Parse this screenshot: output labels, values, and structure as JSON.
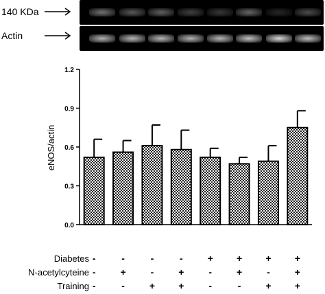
{
  "blot": {
    "top_label": "140 KDa",
    "bottom_label": "Actin",
    "top_band_intensity": [
      0.45,
      0.35,
      0.38,
      0.25,
      0.22,
      0.4,
      0.15,
      0.3
    ],
    "bottom_band_intensity": [
      0.7,
      0.72,
      0.72,
      0.7,
      0.72,
      0.76,
      0.85,
      0.75
    ]
  },
  "chart_data": {
    "type": "bar",
    "title": "",
    "xlabel": "",
    "ylabel": "eNOS/actin",
    "ylim": [
      0,
      1.2
    ],
    "yticks": [
      "0.0",
      "0.3",
      "0.6",
      "0.9",
      "1.2"
    ],
    "ytick_values": [
      0,
      0.3,
      0.6,
      0.9,
      1.2
    ],
    "values": [
      0.52,
      0.56,
      0.61,
      0.58,
      0.52,
      0.47,
      0.49,
      0.75
    ],
    "errors": [
      0.14,
      0.09,
      0.16,
      0.15,
      0.07,
      0.05,
      0.12,
      0.13
    ],
    "bar_fill": "checkered gray",
    "grid": false
  },
  "conditions": [
    {
      "label": "Diabetes",
      "signs": [
        "-",
        "-",
        "-",
        "-",
        "+",
        "+",
        "+",
        "+"
      ]
    },
    {
      "label": "N-acetylcyteine",
      "signs": [
        "-",
        "+",
        "-",
        "+",
        "-",
        "+",
        "-",
        "+"
      ]
    },
    {
      "label": "Training",
      "signs": [
        "-",
        "-",
        "+",
        "+",
        "-",
        "-",
        "+",
        "+"
      ]
    }
  ]
}
